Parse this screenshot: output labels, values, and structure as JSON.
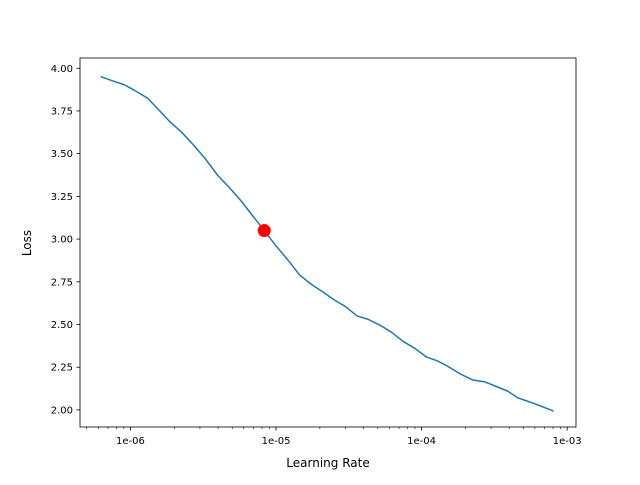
{
  "chart_data": {
    "type": "line",
    "title": "",
    "xlabel": "Learning Rate",
    "ylabel": "Loss",
    "xscale": "log",
    "xlim": [
      4.5e-07,
      0.00115
    ],
    "ylim": [
      1.9,
      4.06
    ],
    "x_ticks": [
      {
        "value": 1e-06,
        "label": "1e-06"
      },
      {
        "value": 1e-05,
        "label": "1e-05"
      },
      {
        "value": 0.0001,
        "label": "1e-04"
      },
      {
        "value": 0.001,
        "label": "1e-03"
      }
    ],
    "y_ticks": [
      {
        "value": 2.0,
        "label": "2.00"
      },
      {
        "value": 2.25,
        "label": "2.25"
      },
      {
        "value": 2.5,
        "label": "2.50"
      },
      {
        "value": 2.75,
        "label": "2.75"
      },
      {
        "value": 3.0,
        "label": "3.00"
      },
      {
        "value": 3.25,
        "label": "3.25"
      },
      {
        "value": 3.5,
        "label": "3.50"
      },
      {
        "value": 3.75,
        "label": "3.75"
      },
      {
        "value": 4.0,
        "label": "4.00"
      }
    ],
    "grid": false,
    "series": [
      {
        "color": "#1f77b4",
        "points": [
          [
            6.3e-07,
            3.95
          ],
          [
            7.6e-07,
            3.925
          ],
          [
            9e-07,
            3.905
          ],
          [
            1.07e-06,
            3.87
          ],
          [
            1.31e-06,
            3.825
          ],
          [
            1.55e-06,
            3.76
          ],
          [
            1.85e-06,
            3.69
          ],
          [
            2.25e-06,
            3.625
          ],
          [
            2.75e-06,
            3.545
          ],
          [
            3.3e-06,
            3.465
          ],
          [
            4e-06,
            3.37
          ],
          [
            4.8e-06,
            3.3
          ],
          [
            5.8e-06,
            3.22
          ],
          [
            7e-06,
            3.13
          ],
          [
            8.3e-06,
            3.05
          ],
          [
            1e-05,
            2.96
          ],
          [
            1.2e-05,
            2.88
          ],
          [
            1.45e-05,
            2.79
          ],
          [
            1.75e-05,
            2.735
          ],
          [
            2.1e-05,
            2.69
          ],
          [
            2.5e-05,
            2.645
          ],
          [
            3e-05,
            2.605
          ],
          [
            3.6e-05,
            2.55
          ],
          [
            4.3e-05,
            2.53
          ],
          [
            5.2e-05,
            2.495
          ],
          [
            6.2e-05,
            2.455
          ],
          [
            7.5e-05,
            2.4
          ],
          [
            9e-05,
            2.36
          ],
          [
            0.000108,
            2.31
          ],
          [
            0.00013,
            2.285
          ],
          [
            0.000155,
            2.25
          ],
          [
            0.000185,
            2.21
          ],
          [
            0.000225,
            2.175
          ],
          [
            0.00027,
            2.165
          ],
          [
            0.00032,
            2.14
          ],
          [
            0.00039,
            2.11
          ],
          [
            0.00046,
            2.07
          ],
          [
            0.00056,
            2.045
          ],
          [
            0.00067,
            2.02
          ],
          [
            0.0008,
            1.995
          ]
        ]
      }
    ],
    "marker": {
      "x": 8.3e-06,
      "y": 3.05,
      "color": "#ff0000"
    }
  }
}
